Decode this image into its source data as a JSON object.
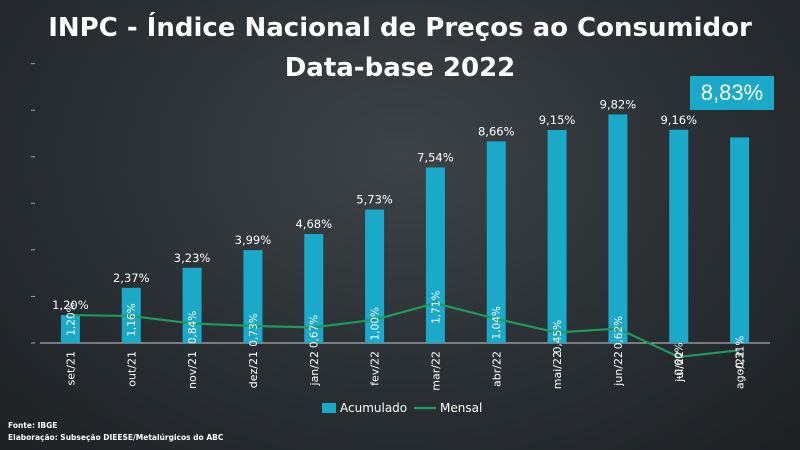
{
  "header": {
    "title_line1": "INPC - Índice Nacional de Preços ao Consumidor",
    "title_line2": "Data-base 2022",
    "highlight": "8,83%"
  },
  "footer": {
    "source": "Fonte: IBGE",
    "credit": "Elaboração: Subseção DIEESE/Metalúrgicos do ABC"
  },
  "colors": {
    "bar": "#1aa9c9",
    "line": "#1f9a5e",
    "text": "#ffffff",
    "badge": "#1aa9c9"
  },
  "chart_data": {
    "type": "bar",
    "categories": [
      "set/21",
      "out/21",
      "nov/21",
      "dez/21",
      "jan/22",
      "fev/22",
      "mar/22",
      "abr/22",
      "mai/22",
      "jun/22",
      "jul/22",
      "ago/22"
    ],
    "series": [
      {
        "name": "Acumulado",
        "type": "bar",
        "values": [
          1.2,
          2.37,
          3.23,
          3.99,
          4.68,
          5.73,
          7.54,
          8.66,
          9.15,
          9.82,
          9.16,
          8.83
        ],
        "labels": [
          "1,20%",
          "2,37%",
          "3,23%",
          "3,99%",
          "4,68%",
          "5,73%",
          "7,54%",
          "8,66%",
          "9,15%",
          "9,82%",
          "9,16%",
          ""
        ]
      },
      {
        "name": "Mensal",
        "type": "line",
        "values": [
          1.2,
          1.16,
          0.84,
          0.73,
          0.67,
          1.0,
          1.71,
          1.04,
          0.45,
          0.62,
          -0.6,
          -0.31
        ],
        "labels": [
          "1,20%",
          "1,16%",
          "0,84%",
          "0,73%",
          "0,67%",
          "1,00%",
          "1,71%",
          "1,04%",
          "0,45%",
          "0,62%",
          "-0,60%",
          "-0,31%"
        ]
      }
    ],
    "ylim": [
      -1,
      10
    ],
    "grid": false,
    "legend": "bottom"
  }
}
